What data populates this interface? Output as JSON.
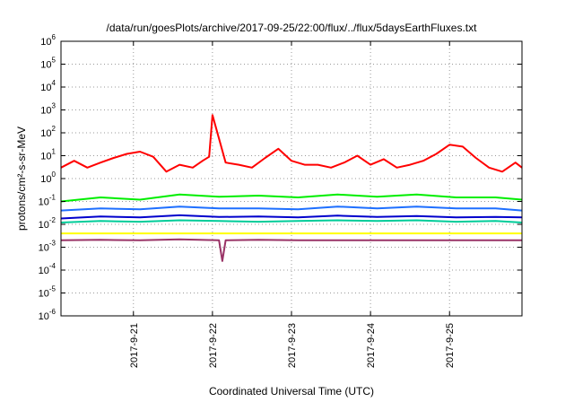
{
  "chart_data": {
    "type": "line",
    "title": "/data/run/goesPlots/archive/2017-09-25/22:00/flux/../flux/5daysEarthFluxes.txt",
    "xlabel": "Coordinated Universal Time (UTC)",
    "ylabel": "protons/cm²-s-sr-MeV",
    "yscale": "log",
    "ylim": [
      1e-06,
      1000000.0
    ],
    "ytick_labels": [
      {
        "base": "10",
        "exp": "-6"
      },
      {
        "base": "10",
        "exp": "-5"
      },
      {
        "base": "10",
        "exp": "-4"
      },
      {
        "base": "10",
        "exp": "-3"
      },
      {
        "base": "10",
        "exp": "-2"
      },
      {
        "base": "10",
        "exp": "-1"
      },
      {
        "base": "10",
        "exp": "0"
      },
      {
        "base": "10",
        "exp": "1"
      },
      {
        "base": "10",
        "exp": "2"
      },
      {
        "base": "10",
        "exp": "3"
      },
      {
        "base": "10",
        "exp": "4"
      },
      {
        "base": "10",
        "exp": "5"
      },
      {
        "base": "10",
        "exp": "6"
      }
    ],
    "xlim": [
      "2017-09-20 02:00",
      "2017-09-25 22:00"
    ],
    "xtick_labels": [
      "2017-9-21",
      "2017-9-22",
      "2017-9-23",
      "2017-9-24",
      "2017-9-25"
    ],
    "xticks": [
      "2017-09-21",
      "2017-09-22",
      "2017-09-23",
      "2017-09-24",
      "2017-09-25"
    ],
    "grid": true,
    "grid_style": "dotted",
    "series": [
      {
        "color": "#ff0000",
        "x": [
          "2017-09-20 02:00",
          "2017-09-20 06:00",
          "2017-09-20 10:00",
          "2017-09-20 14:00",
          "2017-09-20 18:00",
          "2017-09-20 22:00",
          "2017-09-21 02:00",
          "2017-09-21 06:00",
          "2017-09-21 10:00",
          "2017-09-21 14:00",
          "2017-09-21 18:00",
          "2017-09-21 21:00",
          "2017-09-21 23:00",
          "2017-09-22 00:00",
          "2017-09-22 04:00",
          "2017-09-22 08:00",
          "2017-09-22 12:00",
          "2017-09-22 16:00",
          "2017-09-22 20:00",
          "2017-09-23 00:00",
          "2017-09-23 04:00",
          "2017-09-23 08:00",
          "2017-09-23 12:00",
          "2017-09-23 16:00",
          "2017-09-23 20:00",
          "2017-09-24 00:00",
          "2017-09-24 04:00",
          "2017-09-24 08:00",
          "2017-09-24 12:00",
          "2017-09-24 16:00",
          "2017-09-24 20:00",
          "2017-09-25 00:00",
          "2017-09-25 04:00",
          "2017-09-25 08:00",
          "2017-09-25 12:00",
          "2017-09-25 16:00",
          "2017-09-25 20:00",
          "2017-09-25 22:00"
        ],
        "y": [
          3,
          6,
          3,
          5,
          8,
          12,
          15,
          9,
          2,
          4,
          3,
          6,
          9,
          600,
          5,
          4,
          3,
          8,
          20,
          6,
          4,
          4,
          3,
          5,
          10,
          4,
          7,
          3,
          4,
          6,
          12,
          30,
          25,
          8,
          3,
          2,
          5,
          3
        ]
      },
      {
        "color": "#00ee00",
        "x": [
          "2017-09-20 02:00",
          "2017-09-20 14:00",
          "2017-09-21 02:00",
          "2017-09-21 14:00",
          "2017-09-22 02:00",
          "2017-09-22 14:00",
          "2017-09-23 02:00",
          "2017-09-23 14:00",
          "2017-09-24 02:00",
          "2017-09-24 14:00",
          "2017-09-25 02:00",
          "2017-09-25 14:00",
          "2017-09-25 22:00"
        ],
        "y": [
          0.1,
          0.15,
          0.12,
          0.2,
          0.16,
          0.18,
          0.15,
          0.2,
          0.16,
          0.2,
          0.15,
          0.15,
          0.12
        ]
      },
      {
        "color": "#1e6fff",
        "x": [
          "2017-09-20 02:00",
          "2017-09-20 14:00",
          "2017-09-21 02:00",
          "2017-09-21 14:00",
          "2017-09-22 02:00",
          "2017-09-22 14:00",
          "2017-09-23 02:00",
          "2017-09-23 14:00",
          "2017-09-24 02:00",
          "2017-09-24 14:00",
          "2017-09-25 02:00",
          "2017-09-25 14:00",
          "2017-09-25 22:00"
        ],
        "y": [
          0.04,
          0.05,
          0.045,
          0.06,
          0.05,
          0.05,
          0.045,
          0.06,
          0.05,
          0.06,
          0.05,
          0.05,
          0.04
        ]
      },
      {
        "color": "#00cc99",
        "x": [
          "2017-09-20 02:00",
          "2017-09-20 14:00",
          "2017-09-21 02:00",
          "2017-09-21 14:00",
          "2017-09-22 02:00",
          "2017-09-22 14:00",
          "2017-09-23 02:00",
          "2017-09-23 14:00",
          "2017-09-24 02:00",
          "2017-09-24 14:00",
          "2017-09-25 02:00",
          "2017-09-25 14:00",
          "2017-09-25 22:00"
        ],
        "y": [
          0.012,
          0.014,
          0.013,
          0.015,
          0.014,
          0.013,
          0.014,
          0.015,
          0.014,
          0.015,
          0.013,
          0.014,
          0.012
        ]
      },
      {
        "color": "#0000cc",
        "x": [
          "2017-09-20 02:00",
          "2017-09-20 14:00",
          "2017-09-21 02:00",
          "2017-09-21 14:00",
          "2017-09-22 02:00",
          "2017-09-22 14:00",
          "2017-09-23 02:00",
          "2017-09-23 14:00",
          "2017-09-24 02:00",
          "2017-09-24 14:00",
          "2017-09-25 02:00",
          "2017-09-25 14:00",
          "2017-09-25 22:00"
        ],
        "y": [
          0.018,
          0.022,
          0.02,
          0.025,
          0.021,
          0.022,
          0.02,
          0.024,
          0.021,
          0.023,
          0.02,
          0.021,
          0.02
        ]
      },
      {
        "color": "#ffff00",
        "x": [
          "2017-09-20 02:00",
          "2017-09-21 02:00",
          "2017-09-22 02:00",
          "2017-09-23 02:00",
          "2017-09-24 02:00",
          "2017-09-25 02:00",
          "2017-09-25 22:00"
        ],
        "y": [
          0.004,
          0.004,
          0.004,
          0.004,
          0.004,
          0.004,
          0.004
        ]
      },
      {
        "color": "#993366",
        "x": [
          "2017-09-20 02:00",
          "2017-09-20 14:00",
          "2017-09-21 02:00",
          "2017-09-21 14:00",
          "2017-09-22 02:00",
          "2017-09-22 03:00",
          "2017-09-22 04:00",
          "2017-09-22 14:00",
          "2017-09-23 02:00",
          "2017-09-24 02:00",
          "2017-09-25 02:00",
          "2017-09-25 22:00"
        ],
        "y": [
          0.002,
          0.0021,
          0.002,
          0.0022,
          0.002,
          0.00025,
          0.002,
          0.0021,
          0.002,
          0.002,
          0.002,
          0.002
        ]
      }
    ]
  }
}
